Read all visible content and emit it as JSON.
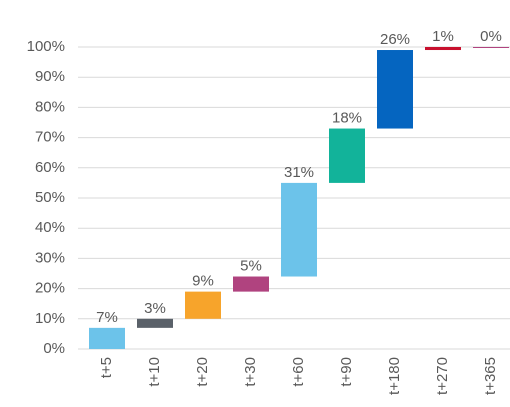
{
  "chart_data": {
    "type": "waterfall",
    "categories": [
      "t+5",
      "t+10",
      "t+20",
      "t+30",
      "t+60",
      "t+90",
      "t+180",
      "t+270",
      "t+365"
    ],
    "values": [
      7,
      3,
      9,
      5,
      31,
      18,
      26,
      1,
      0
    ],
    "value_labels": [
      "7%",
      "3%",
      "9%",
      "5%",
      "31%",
      "18%",
      "26%",
      "1%",
      "0%"
    ],
    "colors": [
      "#6cc3ea",
      "#5a6169",
      "#f7a42b",
      "#b0437f",
      "#6cc3ea",
      "#12b39a",
      "#0565c0",
      "#c8102e",
      "#b0437f"
    ],
    "ylim": [
      0,
      100
    ],
    "yticks": [
      {
        "value": 0,
        "label": "0%"
      },
      {
        "value": 10,
        "label": "10%"
      },
      {
        "value": 20,
        "label": "20%"
      },
      {
        "value": 30,
        "label": "30%"
      },
      {
        "value": 40,
        "label": "40%"
      },
      {
        "value": 50,
        "label": "50%"
      },
      {
        "value": 60,
        "label": "60%"
      },
      {
        "value": 70,
        "label": "70%"
      },
      {
        "value": 80,
        "label": "80%"
      },
      {
        "value": 90,
        "label": "90%"
      },
      {
        "value": 100,
        "label": "100%"
      }
    ],
    "grid": true
  }
}
